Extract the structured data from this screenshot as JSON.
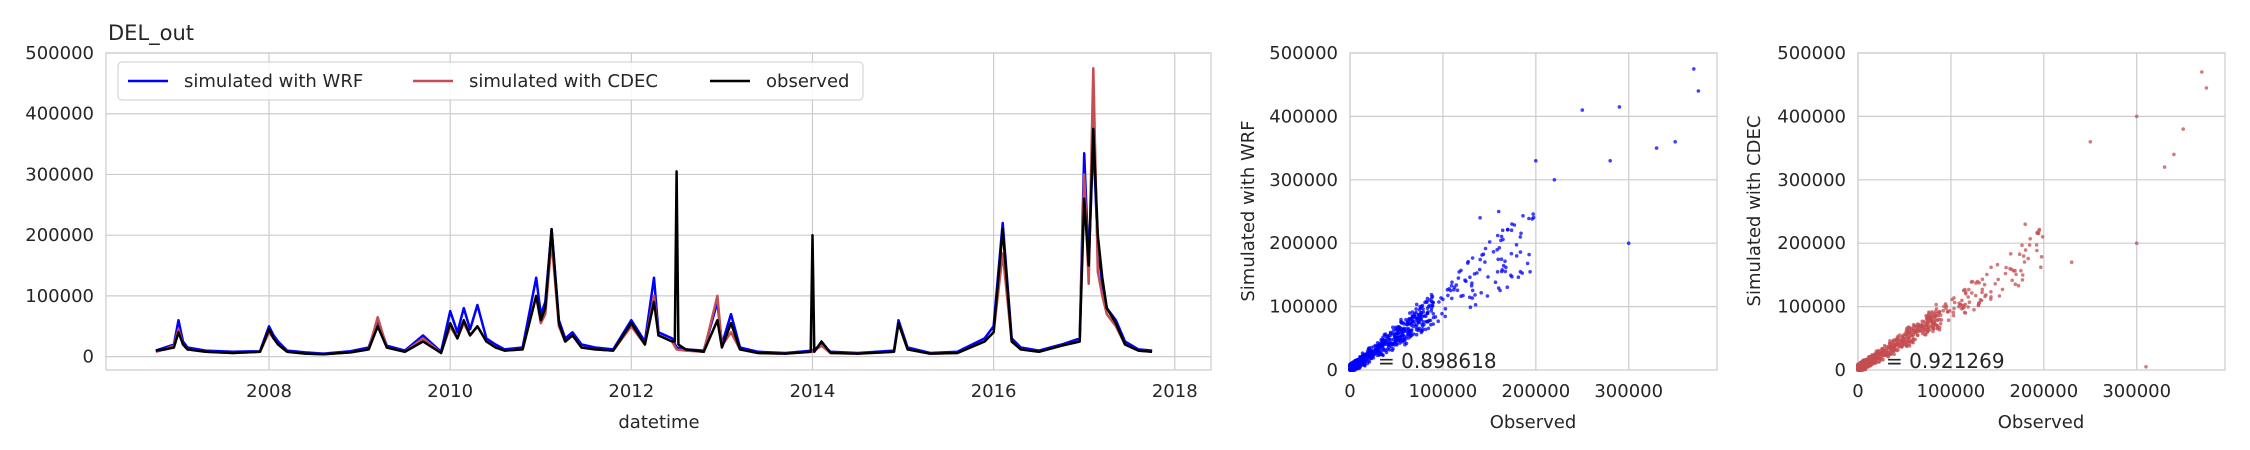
{
  "colors": {
    "wrf": "#0000ff",
    "cdec": "#c44e52",
    "observed": "#000000",
    "grid": "#cccccc",
    "axes_edge": "#cccccc",
    "text": "#262626"
  },
  "chart_data": [
    {
      "type": "line",
      "title": "DEL_out",
      "xlabel": "datetime",
      "ylabel": "",
      "xlim": [
        2006.2,
        2018.4
      ],
      "ylim": [
        -22000,
        500000
      ],
      "x_ticks": [
        2008,
        2010,
        2012,
        2014,
        2016,
        2018
      ],
      "x_tick_labels": [
        "2008",
        "2010",
        "2012",
        "2014",
        "2016",
        "2018"
      ],
      "y_ticks": [
        0,
        100000,
        200000,
        300000,
        400000,
        500000
      ],
      "y_tick_labels": [
        "0",
        "100000",
        "200000",
        "300000",
        "400000",
        "500000"
      ],
      "grid": true,
      "legend": {
        "placement": "upper-left",
        "columns": 3
      },
      "series": [
        {
          "name": "simulated with WRF",
          "color": "#0000ff",
          "x": [
            2006.75,
            2006.85,
            2006.95,
            2007.0,
            2007.05,
            2007.1,
            2007.3,
            2007.6,
            2007.9,
            2008.0,
            2008.05,
            2008.1,
            2008.2,
            2008.4,
            2008.6,
            2008.9,
            2009.1,
            2009.2,
            2009.3,
            2009.5,
            2009.7,
            2009.9,
            2010.0,
            2010.08,
            2010.15,
            2010.22,
            2010.3,
            2010.4,
            2010.5,
            2010.6,
            2010.8,
            2010.95,
            2011.0,
            2011.05,
            2011.12,
            2011.2,
            2011.27,
            2011.35,
            2011.45,
            2011.6,
            2011.8,
            2012.0,
            2012.15,
            2012.25,
            2012.3,
            2012.45,
            2012.5,
            2012.6,
            2012.8,
            2012.95,
            2013.0,
            2013.1,
            2013.2,
            2013.4,
            2013.7,
            2014.0,
            2014.1,
            2014.2,
            2014.5,
            2014.9,
            2014.95,
            2015.05,
            2015.3,
            2015.6,
            2015.9,
            2016.0,
            2016.1,
            2016.2,
            2016.3,
            2016.5,
            2016.75,
            2016.95,
            2017.0,
            2017.05,
            2017.1,
            2017.15,
            2017.2,
            2017.25,
            2017.35,
            2017.45,
            2017.6,
            2017.75
          ],
          "y": [
            10000,
            15000,
            20000,
            60000,
            25000,
            15000,
            10000,
            8000,
            9000,
            50000,
            35000,
            25000,
            10000,
            7000,
            5000,
            9000,
            15000,
            60000,
            18000,
            10000,
            35000,
            8000,
            75000,
            40000,
            80000,
            45000,
            85000,
            30000,
            20000,
            12000,
            15000,
            130000,
            70000,
            90000,
            210000,
            60000,
            30000,
            40000,
            20000,
            15000,
            12000,
            60000,
            25000,
            130000,
            40000,
            30000,
            15000,
            12000,
            10000,
            90000,
            20000,
            70000,
            15000,
            8000,
            6000,
            10000,
            20000,
            8000,
            6000,
            10000,
            60000,
            15000,
            6000,
            8000,
            30000,
            50000,
            220000,
            30000,
            15000,
            10000,
            20000,
            30000,
            335000,
            150000,
            360000,
            180000,
            120000,
            80000,
            60000,
            25000,
            12000,
            10000
          ]
        },
        {
          "name": "simulated with CDEC",
          "color": "#c44e52",
          "x": [
            2006.75,
            2006.85,
            2006.95,
            2007.0,
            2007.05,
            2007.1,
            2007.3,
            2007.6,
            2007.9,
            2008.0,
            2008.05,
            2008.1,
            2008.2,
            2008.4,
            2008.6,
            2008.9,
            2009.1,
            2009.2,
            2009.3,
            2009.5,
            2009.7,
            2009.9,
            2010.0,
            2010.08,
            2010.15,
            2010.22,
            2010.3,
            2010.4,
            2010.5,
            2010.6,
            2010.8,
            2010.95,
            2011.0,
            2011.05,
            2011.12,
            2011.2,
            2011.27,
            2011.35,
            2011.45,
            2011.6,
            2011.8,
            2012.0,
            2012.15,
            2012.25,
            2012.3,
            2012.45,
            2012.5,
            2012.6,
            2012.8,
            2012.95,
            2013.0,
            2013.1,
            2013.2,
            2013.4,
            2013.7,
            2014.0,
            2014.1,
            2014.2,
            2014.5,
            2014.9,
            2014.95,
            2015.05,
            2015.3,
            2015.6,
            2015.9,
            2016.0,
            2016.1,
            2016.2,
            2016.3,
            2016.5,
            2016.75,
            2016.95,
            2017.0,
            2017.05,
            2017.1,
            2017.15,
            2017.2,
            2017.25,
            2017.35,
            2017.45,
            2017.6,
            2017.75
          ],
          "y": [
            8000,
            12000,
            18000,
            45000,
            20000,
            12000,
            8000,
            6000,
            8000,
            40000,
            30000,
            20000,
            8000,
            5000,
            4000,
            7000,
            12000,
            65000,
            15000,
            8000,
            30000,
            6000,
            50000,
            30000,
            55000,
            35000,
            50000,
            25000,
            15000,
            10000,
            12000,
            100000,
            55000,
            70000,
            190000,
            50000,
            25000,
            35000,
            15000,
            12000,
            10000,
            50000,
            20000,
            100000,
            35000,
            25000,
            12000,
            10000,
            8000,
            100000,
            18000,
            40000,
            12000,
            6000,
            5000,
            8000,
            18000,
            6000,
            5000,
            8000,
            55000,
            12000,
            5000,
            6000,
            25000,
            40000,
            170000,
            25000,
            12000,
            8000,
            18000,
            25000,
            300000,
            120000,
            475000,
            140000,
            100000,
            70000,
            50000,
            20000,
            10000,
            8000
          ]
        },
        {
          "name": "observed",
          "color": "#000000",
          "x": [
            2006.75,
            2006.85,
            2006.95,
            2007.0,
            2007.05,
            2007.1,
            2007.3,
            2007.6,
            2007.9,
            2008.0,
            2008.05,
            2008.1,
            2008.2,
            2008.4,
            2008.6,
            2008.9,
            2009.1,
            2009.2,
            2009.3,
            2009.5,
            2009.7,
            2009.9,
            2010.0,
            2010.08,
            2010.15,
            2010.22,
            2010.3,
            2010.4,
            2010.5,
            2010.6,
            2010.8,
            2010.95,
            2011.0,
            2011.05,
            2011.12,
            2011.2,
            2011.27,
            2011.35,
            2011.45,
            2011.6,
            2011.8,
            2012.0,
            2012.15,
            2012.25,
            2012.3,
            2012.45,
            2012.48,
            2012.5,
            2012.52,
            2012.6,
            2012.8,
            2012.95,
            2013.0,
            2013.1,
            2013.2,
            2013.4,
            2013.7,
            2013.98,
            2014.0,
            2014.02,
            2014.1,
            2014.2,
            2014.5,
            2014.9,
            2014.95,
            2015.05,
            2015.3,
            2015.6,
            2015.9,
            2016.0,
            2016.1,
            2016.2,
            2016.3,
            2016.5,
            2016.75,
            2016.95,
            2017.0,
            2017.05,
            2017.1,
            2017.15,
            2017.2,
            2017.25,
            2017.35,
            2017.45,
            2017.6,
            2017.75
          ],
          "y": [
            10000,
            12000,
            15000,
            40000,
            20000,
            12000,
            8000,
            6000,
            8000,
            45000,
            30000,
            20000,
            8000,
            5000,
            4000,
            7000,
            12000,
            50000,
            15000,
            8000,
            25000,
            6000,
            55000,
            30000,
            60000,
            35000,
            50000,
            25000,
            15000,
            10000,
            12000,
            100000,
            60000,
            80000,
            210000,
            55000,
            25000,
            35000,
            15000,
            12000,
            10000,
            55000,
            20000,
            90000,
            35000,
            25000,
            25000,
            305000,
            20000,
            12000,
            8000,
            60000,
            15000,
            55000,
            12000,
            6000,
            5000,
            8000,
            200000,
            8000,
            25000,
            6000,
            5000,
            8000,
            55000,
            12000,
            5000,
            6000,
            25000,
            40000,
            210000,
            25000,
            12000,
            8000,
            18000,
            25000,
            260000,
            150000,
            375000,
            200000,
            130000,
            80000,
            55000,
            20000,
            10000,
            8000
          ]
        }
      ]
    },
    {
      "type": "scatter",
      "title": "",
      "xlabel": "Observed",
      "ylabel": "Simulated with WRF",
      "xlim": [
        0,
        395000
      ],
      "ylim": [
        0,
        500000
      ],
      "x_ticks": [
        0,
        100000,
        200000,
        300000
      ],
      "x_tick_labels": [
        "0",
        "100000",
        "200000",
        "300000"
      ],
      "y_ticks": [
        0,
        100000,
        200000,
        300000,
        400000,
        500000
      ],
      "y_tick_labels": [
        "0",
        "100000",
        "200000",
        "300000",
        "400000",
        "500000"
      ],
      "grid": true,
      "color": "#0000ff",
      "annotation": "= 0.898618",
      "ratio": 1.05,
      "spread": 0.28,
      "outliers": [
        [
          250000,
          410000
        ],
        [
          290000,
          415000
        ],
        [
          370000,
          475000
        ],
        [
          375000,
          440000
        ],
        [
          200000,
          330000
        ],
        [
          280000,
          330000
        ],
        [
          140000,
          240000
        ],
        [
          160000,
          250000
        ],
        [
          330000,
          350000
        ],
        [
          220000,
          300000
        ],
        [
          300000,
          200000
        ],
        [
          350000,
          360000
        ]
      ]
    },
    {
      "type": "scatter",
      "title": "",
      "xlabel": "Observed",
      "ylabel": "Simulated with CDEC",
      "xlim": [
        0,
        395000
      ],
      "ylim": [
        0,
        500000
      ],
      "x_ticks": [
        0,
        100000,
        200000,
        300000
      ],
      "x_tick_labels": [
        "0",
        "100000",
        "200000",
        "300000"
      ],
      "y_ticks": [
        0,
        100000,
        200000,
        300000,
        400000,
        500000
      ],
      "y_tick_labels": [
        "0",
        "100000",
        "200000",
        "300000",
        "400000",
        "500000"
      ],
      "grid": true,
      "color": "#c44e52",
      "annotation": "= 0.921269",
      "ratio": 0.95,
      "spread": 0.2,
      "outliers": [
        [
          300000,
          400000
        ],
        [
          370000,
          470000
        ],
        [
          375000,
          445000
        ],
        [
          250000,
          360000
        ],
        [
          340000,
          340000
        ],
        [
          330000,
          320000
        ],
        [
          300000,
          200000
        ],
        [
          230000,
          170000
        ],
        [
          310000,
          5000
        ],
        [
          180000,
          230000
        ],
        [
          350000,
          380000
        ]
      ]
    }
  ]
}
